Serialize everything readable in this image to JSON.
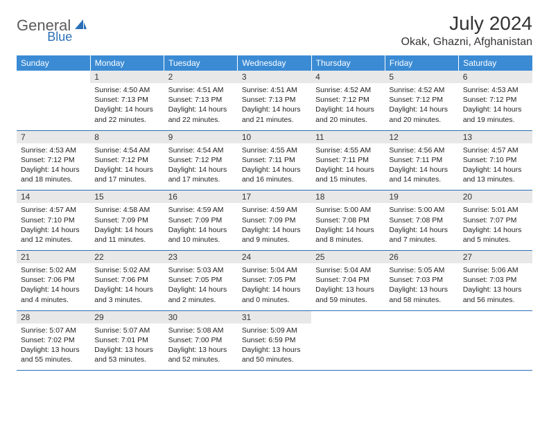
{
  "logo": {
    "text1": "General",
    "text2": "Blue"
  },
  "title": "July 2024",
  "location": "Okak, Ghazni, Afghanistan",
  "header_bg": "#3b8bd4",
  "rule_color": "#2a6fb5",
  "weekdays": [
    "Sunday",
    "Monday",
    "Tuesday",
    "Wednesday",
    "Thursday",
    "Friday",
    "Saturday"
  ],
  "weeks": [
    [
      {
        "n": "",
        "sunrise": "",
        "sunset": "",
        "daylight": ""
      },
      {
        "n": "1",
        "sunrise": "Sunrise: 4:50 AM",
        "sunset": "Sunset: 7:13 PM",
        "daylight": "Daylight: 14 hours and 22 minutes."
      },
      {
        "n": "2",
        "sunrise": "Sunrise: 4:51 AM",
        "sunset": "Sunset: 7:13 PM",
        "daylight": "Daylight: 14 hours and 22 minutes."
      },
      {
        "n": "3",
        "sunrise": "Sunrise: 4:51 AM",
        "sunset": "Sunset: 7:13 PM",
        "daylight": "Daylight: 14 hours and 21 minutes."
      },
      {
        "n": "4",
        "sunrise": "Sunrise: 4:52 AM",
        "sunset": "Sunset: 7:12 PM",
        "daylight": "Daylight: 14 hours and 20 minutes."
      },
      {
        "n": "5",
        "sunrise": "Sunrise: 4:52 AM",
        "sunset": "Sunset: 7:12 PM",
        "daylight": "Daylight: 14 hours and 20 minutes."
      },
      {
        "n": "6",
        "sunrise": "Sunrise: 4:53 AM",
        "sunset": "Sunset: 7:12 PM",
        "daylight": "Daylight: 14 hours and 19 minutes."
      }
    ],
    [
      {
        "n": "7",
        "sunrise": "Sunrise: 4:53 AM",
        "sunset": "Sunset: 7:12 PM",
        "daylight": "Daylight: 14 hours and 18 minutes."
      },
      {
        "n": "8",
        "sunrise": "Sunrise: 4:54 AM",
        "sunset": "Sunset: 7:12 PM",
        "daylight": "Daylight: 14 hours and 17 minutes."
      },
      {
        "n": "9",
        "sunrise": "Sunrise: 4:54 AM",
        "sunset": "Sunset: 7:12 PM",
        "daylight": "Daylight: 14 hours and 17 minutes."
      },
      {
        "n": "10",
        "sunrise": "Sunrise: 4:55 AM",
        "sunset": "Sunset: 7:11 PM",
        "daylight": "Daylight: 14 hours and 16 minutes."
      },
      {
        "n": "11",
        "sunrise": "Sunrise: 4:55 AM",
        "sunset": "Sunset: 7:11 PM",
        "daylight": "Daylight: 14 hours and 15 minutes."
      },
      {
        "n": "12",
        "sunrise": "Sunrise: 4:56 AM",
        "sunset": "Sunset: 7:11 PM",
        "daylight": "Daylight: 14 hours and 14 minutes."
      },
      {
        "n": "13",
        "sunrise": "Sunrise: 4:57 AM",
        "sunset": "Sunset: 7:10 PM",
        "daylight": "Daylight: 14 hours and 13 minutes."
      }
    ],
    [
      {
        "n": "14",
        "sunrise": "Sunrise: 4:57 AM",
        "sunset": "Sunset: 7:10 PM",
        "daylight": "Daylight: 14 hours and 12 minutes."
      },
      {
        "n": "15",
        "sunrise": "Sunrise: 4:58 AM",
        "sunset": "Sunset: 7:09 PM",
        "daylight": "Daylight: 14 hours and 11 minutes."
      },
      {
        "n": "16",
        "sunrise": "Sunrise: 4:59 AM",
        "sunset": "Sunset: 7:09 PM",
        "daylight": "Daylight: 14 hours and 10 minutes."
      },
      {
        "n": "17",
        "sunrise": "Sunrise: 4:59 AM",
        "sunset": "Sunset: 7:09 PM",
        "daylight": "Daylight: 14 hours and 9 minutes."
      },
      {
        "n": "18",
        "sunrise": "Sunrise: 5:00 AM",
        "sunset": "Sunset: 7:08 PM",
        "daylight": "Daylight: 14 hours and 8 minutes."
      },
      {
        "n": "19",
        "sunrise": "Sunrise: 5:00 AM",
        "sunset": "Sunset: 7:08 PM",
        "daylight": "Daylight: 14 hours and 7 minutes."
      },
      {
        "n": "20",
        "sunrise": "Sunrise: 5:01 AM",
        "sunset": "Sunset: 7:07 PM",
        "daylight": "Daylight: 14 hours and 5 minutes."
      }
    ],
    [
      {
        "n": "21",
        "sunrise": "Sunrise: 5:02 AM",
        "sunset": "Sunset: 7:06 PM",
        "daylight": "Daylight: 14 hours and 4 minutes."
      },
      {
        "n": "22",
        "sunrise": "Sunrise: 5:02 AM",
        "sunset": "Sunset: 7:06 PM",
        "daylight": "Daylight: 14 hours and 3 minutes."
      },
      {
        "n": "23",
        "sunrise": "Sunrise: 5:03 AM",
        "sunset": "Sunset: 7:05 PM",
        "daylight": "Daylight: 14 hours and 2 minutes."
      },
      {
        "n": "24",
        "sunrise": "Sunrise: 5:04 AM",
        "sunset": "Sunset: 7:05 PM",
        "daylight": "Daylight: 14 hours and 0 minutes."
      },
      {
        "n": "25",
        "sunrise": "Sunrise: 5:04 AM",
        "sunset": "Sunset: 7:04 PM",
        "daylight": "Daylight: 13 hours and 59 minutes."
      },
      {
        "n": "26",
        "sunrise": "Sunrise: 5:05 AM",
        "sunset": "Sunset: 7:03 PM",
        "daylight": "Daylight: 13 hours and 58 minutes."
      },
      {
        "n": "27",
        "sunrise": "Sunrise: 5:06 AM",
        "sunset": "Sunset: 7:03 PM",
        "daylight": "Daylight: 13 hours and 56 minutes."
      }
    ],
    [
      {
        "n": "28",
        "sunrise": "Sunrise: 5:07 AM",
        "sunset": "Sunset: 7:02 PM",
        "daylight": "Daylight: 13 hours and 55 minutes."
      },
      {
        "n": "29",
        "sunrise": "Sunrise: 5:07 AM",
        "sunset": "Sunset: 7:01 PM",
        "daylight": "Daylight: 13 hours and 53 minutes."
      },
      {
        "n": "30",
        "sunrise": "Sunrise: 5:08 AM",
        "sunset": "Sunset: 7:00 PM",
        "daylight": "Daylight: 13 hours and 52 minutes."
      },
      {
        "n": "31",
        "sunrise": "Sunrise: 5:09 AM",
        "sunset": "Sunset: 6:59 PM",
        "daylight": "Daylight: 13 hours and 50 minutes."
      },
      {
        "n": "",
        "sunrise": "",
        "sunset": "",
        "daylight": ""
      },
      {
        "n": "",
        "sunrise": "",
        "sunset": "",
        "daylight": ""
      },
      {
        "n": "",
        "sunrise": "",
        "sunset": "",
        "daylight": ""
      }
    ]
  ]
}
